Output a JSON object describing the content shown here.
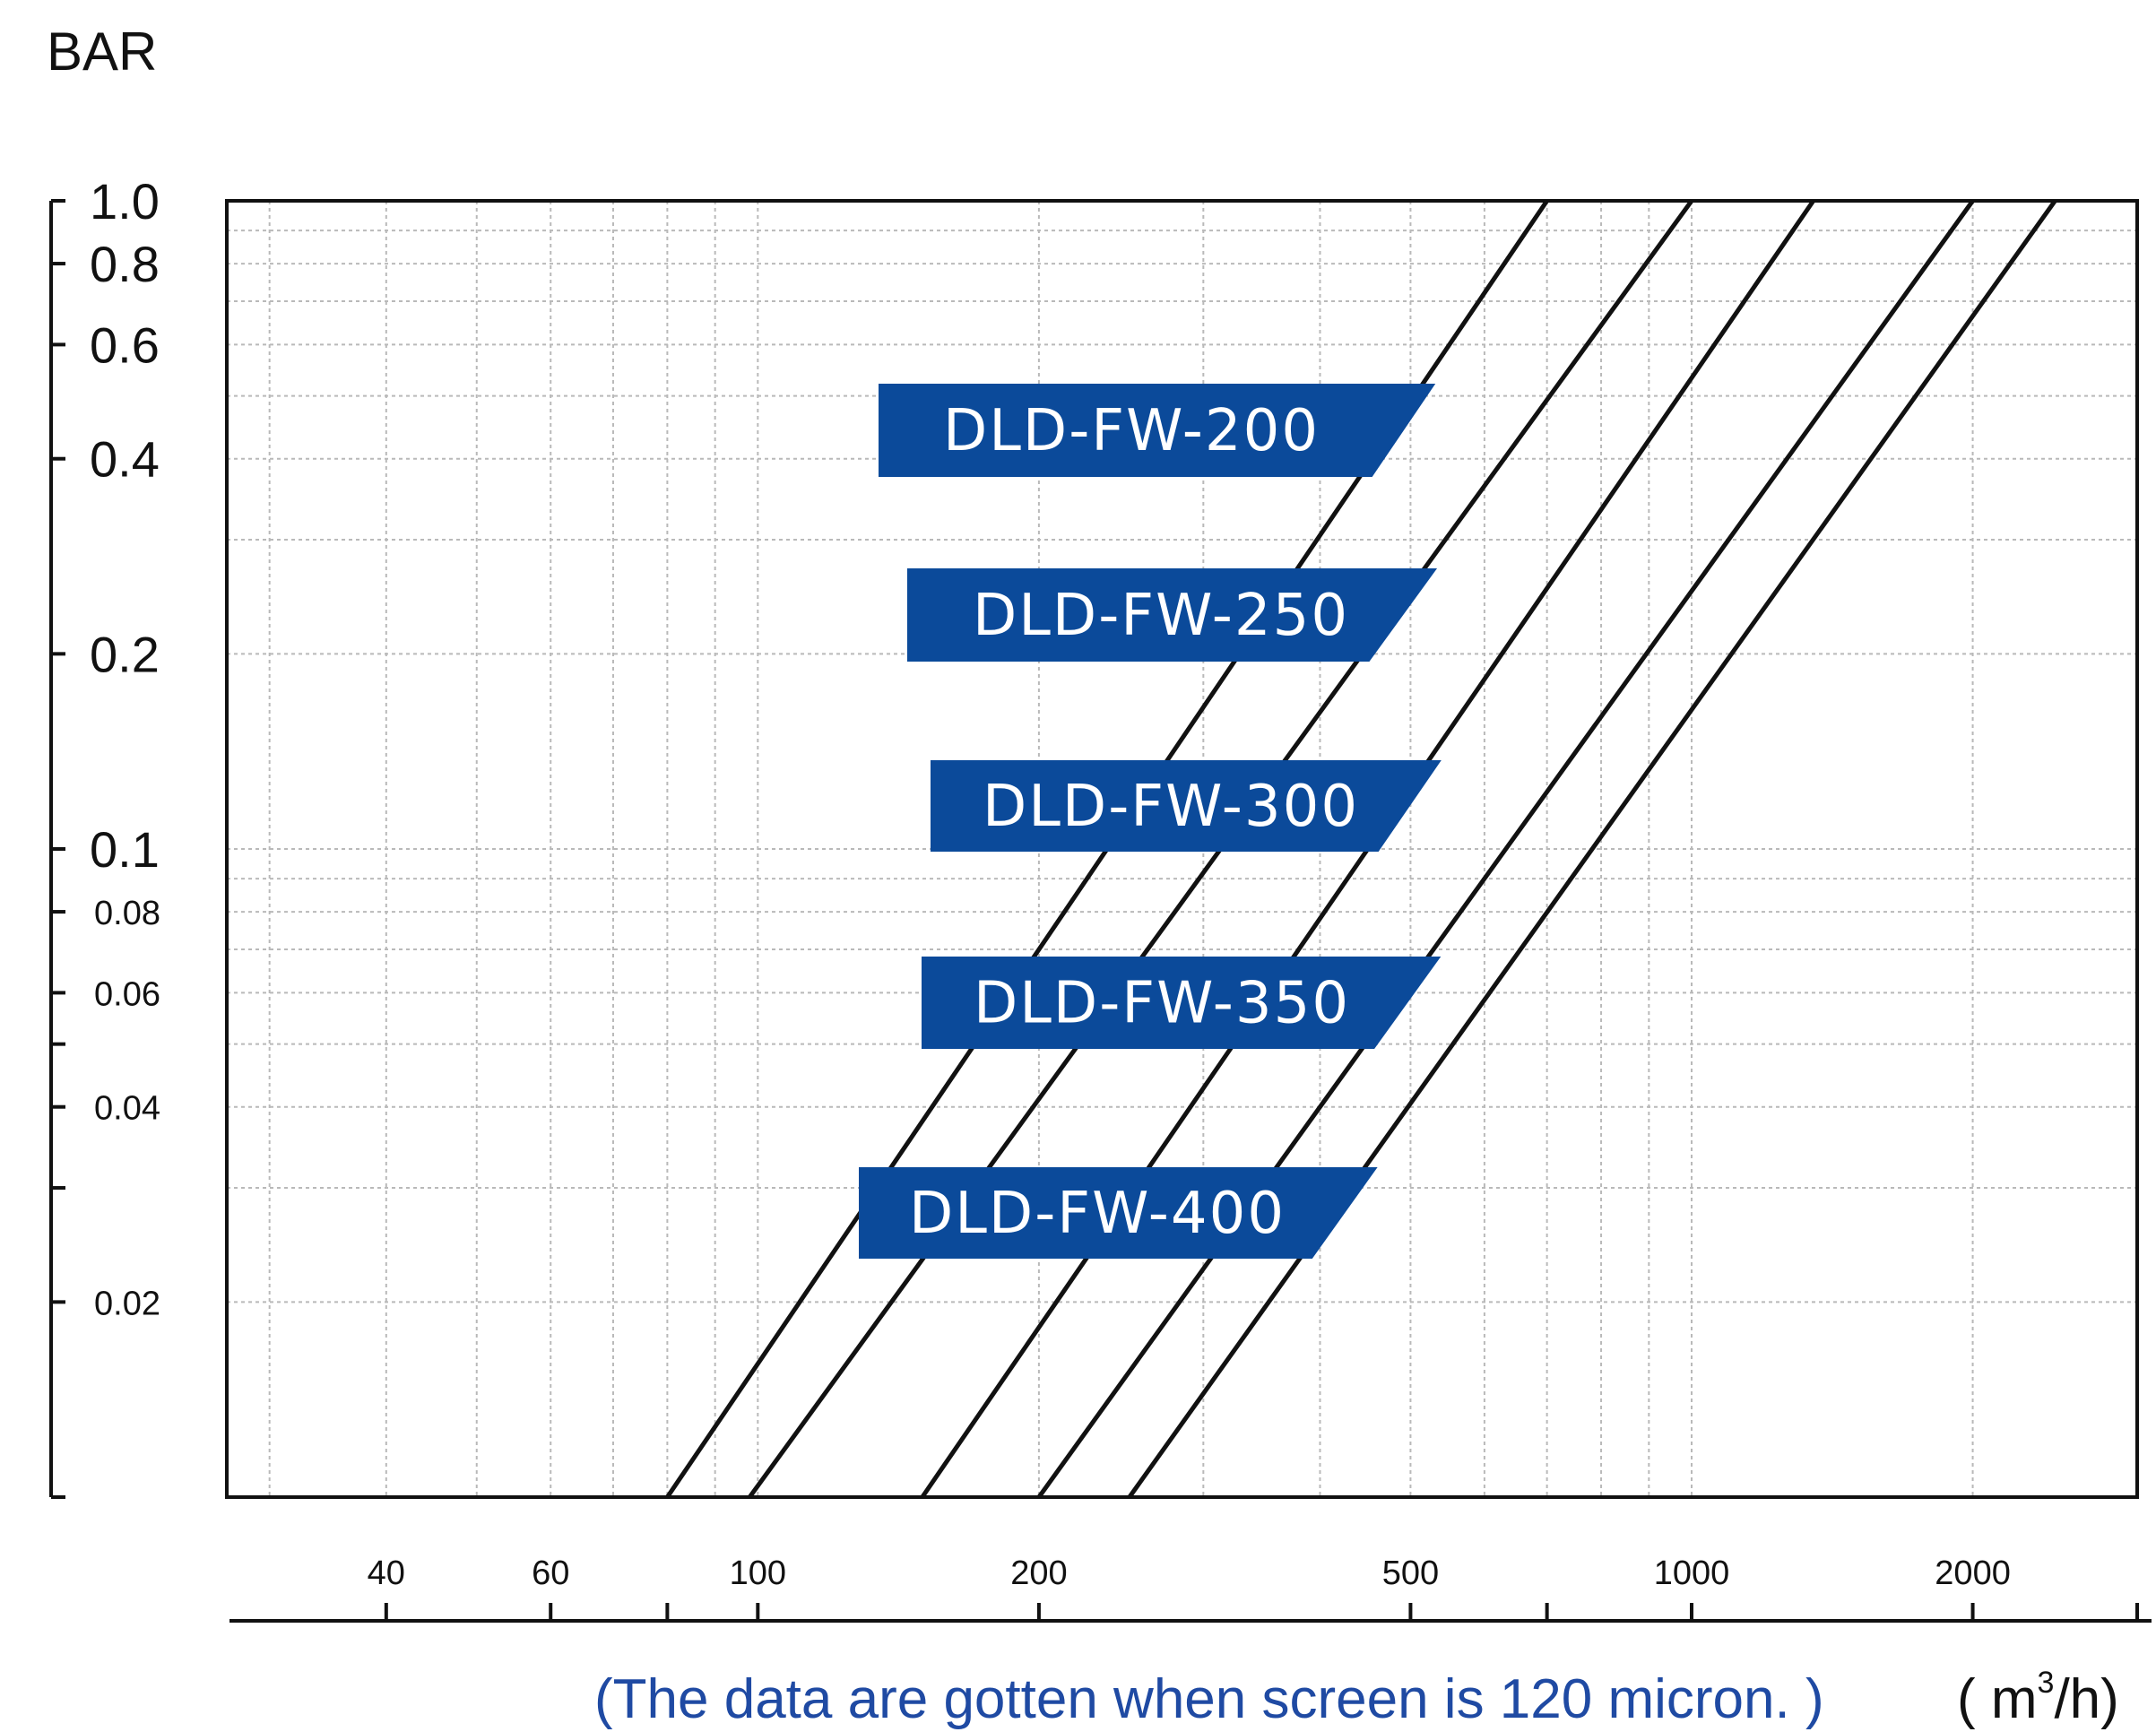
{
  "chart_data": {
    "type": "line",
    "ylabel": "BAR",
    "y_scale": "log",
    "x_scale": "log",
    "y_ticks": [
      "1.0",
      "0.8",
      "0.6",
      "0.4",
      "0.2",
      "0.1",
      "0.08",
      "0.06",
      "0.04",
      "0.02"
    ],
    "x_ticks": [
      "40",
      "60",
      "100",
      "200",
      "500",
      "1000",
      "2000"
    ],
    "xlim": [
      27,
      3000
    ],
    "ylim": [
      0.01,
      1.0
    ],
    "grid": true,
    "series": [
      {
        "name": "DLD-FW-200",
        "x": [
          80,
          700
        ],
        "y": [
          0.01,
          1.0
        ]
      },
      {
        "name": "DLD-FW-250",
        "x": [
          98,
          1000
        ],
        "y": [
          0.01,
          1.0
        ]
      },
      {
        "name": "DLD-FW-300",
        "x": [
          150,
          1350
        ],
        "y": [
          0.01,
          1.0
        ]
      },
      {
        "name": "DLD-FW-350",
        "x": [
          200,
          2000
        ],
        "y": [
          0.01,
          1.0
        ]
      },
      {
        "name": "DLD-FW-400",
        "x": [
          250,
          2450
        ],
        "y": [
          0.01,
          1.0
        ]
      }
    ],
    "note": "(The data are gotten when screen is 120 micron. )",
    "unit_open": "( m",
    "unit_sup": "3",
    "unit_close": "/h)",
    "label_color": "#0b4a9a",
    "line_color": "#111111"
  }
}
